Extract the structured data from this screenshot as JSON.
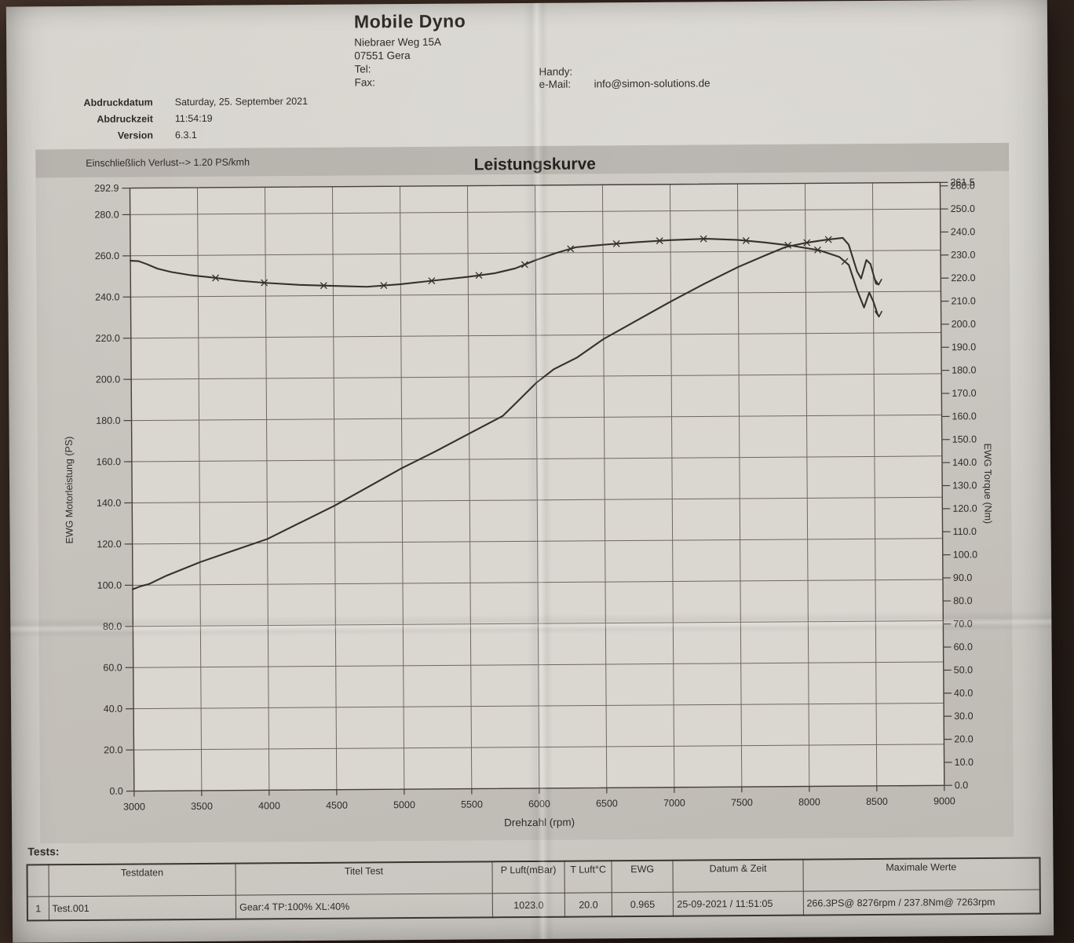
{
  "photo": {
    "backdrop_color": "#2e211b",
    "paper_color": "#d3d0ca"
  },
  "header": {
    "company": "Mobile Dyno",
    "address_line1": "Niebraer Weg 15A",
    "address_line2": "07551 Gera",
    "tel_label": "Tel:",
    "fax_label": "Fax:",
    "handy_label": "Handy:",
    "email_label": "e-Mail:",
    "email_value": "info@simon-solutions.de",
    "meta": [
      {
        "label": "Abdruckdatum",
        "value": "Saturday, 25. September 2021"
      },
      {
        "label": "Abdruckzeit",
        "value": "11:54:19"
      },
      {
        "label": "Version",
        "value": "6.3.1"
      }
    ]
  },
  "tests": {
    "heading": "Tests:",
    "columns": [
      "",
      "Testdaten",
      "Titel Test",
      "P Luft(mBar)",
      "T Luft°C",
      "EWG",
      "Datum & Zeit",
      "Maximale Werte"
    ],
    "rows": [
      [
        "1",
        "Test.001",
        "Gear:4 TP:100% XL:40%",
        "1023.0",
        "20.0",
        "0.965",
        "25-09-2021 / 11:51:05",
        "266.3PS@ 8276rpm / 237.8Nm@ 7263rpm"
      ]
    ]
  },
  "chart_data": {
    "type": "line",
    "title": "Leistungskurve",
    "note": "Einschließlich Verlust--> 1.20 PS/kmh",
    "xlabel": "Drehzahl (rpm)",
    "x_range": [
      3000,
      9000
    ],
    "x_tick_step": 500,
    "grid": true,
    "left_axis": {
      "label": "EWG Motorleistung (PS)",
      "range": [
        0,
        292.9
      ],
      "tick_step": 20,
      "top_tick": 292.9
    },
    "right_axis": {
      "label": "EWG Torque (Nm)",
      "range": [
        0,
        261.5
      ],
      "tick_step": 10,
      "top_tick": 261.5
    },
    "series": [
      {
        "id": "power",
        "name": "EWG Motorleistung (PS)",
        "axis": "left",
        "marker_rpms": [
          8010,
          8170
        ],
        "points": [
          [
            3000,
            98
          ],
          [
            3060,
            99.5
          ],
          [
            3120,
            100.5
          ],
          [
            3250,
            104.5
          ],
          [
            3500,
            111
          ],
          [
            3750,
            116.5
          ],
          [
            4000,
            122
          ],
          [
            4250,
            130
          ],
          [
            4500,
            138
          ],
          [
            4750,
            147
          ],
          [
            5000,
            156
          ],
          [
            5250,
            164
          ],
          [
            5500,
            172.5
          ],
          [
            5750,
            181
          ],
          [
            5860,
            188
          ],
          [
            6000,
            197
          ],
          [
            6130,
            203.5
          ],
          [
            6300,
            209
          ],
          [
            6500,
            218
          ],
          [
            6750,
            227
          ],
          [
            7000,
            236
          ],
          [
            7250,
            244.5
          ],
          [
            7500,
            252.5
          ],
          [
            7700,
            258
          ],
          [
            7850,
            262
          ],
          [
            8000,
            264
          ],
          [
            8150,
            265.4
          ],
          [
            8276,
            266.3
          ],
          [
            8320,
            263
          ],
          [
            8380,
            250
          ],
          [
            8410,
            246.5
          ],
          [
            8450,
            255.5
          ],
          [
            8480,
            253.5
          ],
          [
            8520,
            244
          ],
          [
            8540,
            243.5
          ]
        ]
      },
      {
        "id": "torque",
        "name": "EWG Torque (Nm)",
        "axis": "right",
        "marker_rpms": [
          3630,
          3990,
          4430,
          4875,
          5230,
          5580,
          5920,
          6260,
          6600,
          6920,
          7245,
          7560,
          7870,
          8090,
          8290
        ],
        "points": [
          [
            3000,
            230
          ],
          [
            3060,
            229.8
          ],
          [
            3120,
            228.5
          ],
          [
            3200,
            226.5
          ],
          [
            3300,
            225
          ],
          [
            3450,
            223.5
          ],
          [
            3600,
            222.5
          ],
          [
            3800,
            221
          ],
          [
            4000,
            220
          ],
          [
            4250,
            219
          ],
          [
            4500,
            218.5
          ],
          [
            4750,
            218
          ],
          [
            5000,
            219
          ],
          [
            5250,
            220.5
          ],
          [
            5500,
            222
          ],
          [
            5700,
            223.5
          ],
          [
            5850,
            225.5
          ],
          [
            6000,
            229
          ],
          [
            6150,
            232
          ],
          [
            6300,
            234.5
          ],
          [
            6500,
            235.5
          ],
          [
            6750,
            236.5
          ],
          [
            7000,
            237.3
          ],
          [
            7263,
            237.8
          ],
          [
            7500,
            237.2
          ],
          [
            7700,
            236
          ],
          [
            7900,
            234.5
          ],
          [
            8100,
            232.5
          ],
          [
            8250,
            229.5
          ],
          [
            8320,
            226
          ],
          [
            8380,
            215
          ],
          [
            8430,
            207.5
          ],
          [
            8470,
            214
          ],
          [
            8500,
            210
          ],
          [
            8530,
            204.5
          ],
          [
            8540,
            203.5
          ]
        ]
      }
    ]
  }
}
